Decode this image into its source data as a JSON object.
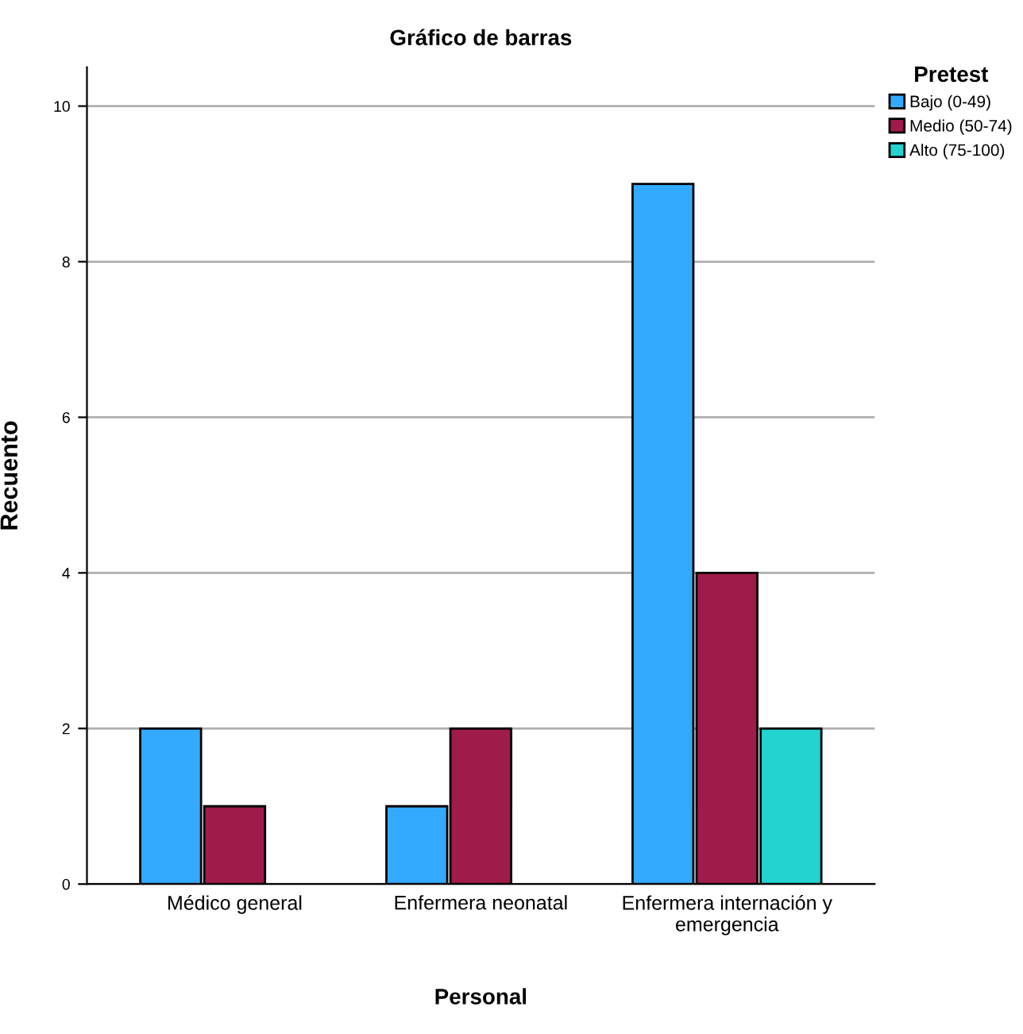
{
  "chart_data": {
    "type": "bar",
    "title": "Gráfico de barras",
    "xlabel": "Personal",
    "ylabel": "Recuento",
    "legend_title": "Pretest",
    "categories": [
      "Médico general",
      "Enfermera neonatal",
      "Enfermera internación y emergencia"
    ],
    "series": [
      {
        "name": "Bajo (0-49)",
        "color": "#33aaff",
        "values": [
          2,
          1,
          9
        ]
      },
      {
        "name": "Medio (50-74)",
        "color": "#9e1b4b",
        "values": [
          1,
          2,
          4
        ]
      },
      {
        "name": "Alto (75-100)",
        "color": "#22d3cf",
        "values": [
          null,
          null,
          2
        ]
      }
    ],
    "ylim": [
      0,
      10.5
    ],
    "yticks": [
      0,
      2,
      4,
      6,
      8,
      10
    ],
    "grid": "y",
    "legend": "top right"
  }
}
